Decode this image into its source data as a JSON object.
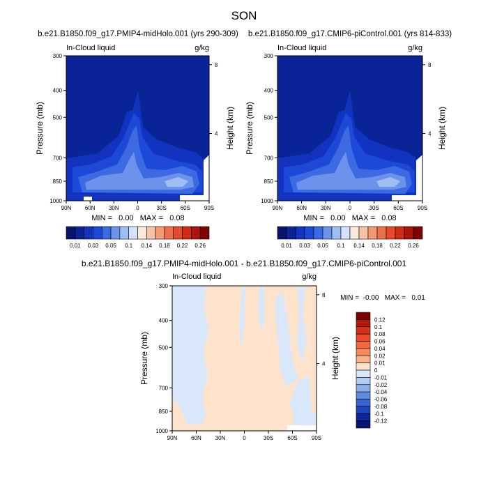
{
  "figure_title": "SON",
  "colors": {
    "panel_bg": "#ffffff",
    "axis": "#000000",
    "missing": "#ffffff"
  },
  "chart_data": [
    {
      "type": "heatmap",
      "id": "top_left",
      "title": "b.e21.B1850.f09_g17.PMIP4-midHolo.001 (yrs 290-309)",
      "left_label": "In-Cloud liquid",
      "right_label": "g/kg",
      "ylabel": "Pressure (mb)",
      "y2label": "Height (km)",
      "xlim": [
        90,
        -90
      ],
      "x_ticks": [
        90,
        60,
        30,
        0,
        -30,
        -60,
        -90
      ],
      "x_tick_labels": [
        "90N",
        "60N",
        "30N",
        "0",
        "30S",
        "60S",
        "90S"
      ],
      "y_ticks": [
        300,
        400,
        500,
        700,
        850,
        1000
      ],
      "y_tick_labels": [
        "300",
        "400",
        "500",
        "700",
        "850",
        "1000"
      ],
      "y2_ticks": [
        8,
        4
      ],
      "y2_tick_labels": [
        "8",
        "4"
      ],
      "minmax_text": "MIN =   0.00   MAX =   0.08",
      "colorbar_levels": [
        "0.01",
        "0.03",
        "0.05",
        "0.1",
        "0.14",
        "0.18",
        "0.22",
        "0.26"
      ],
      "colorbar_colors": [
        "#08146b",
        "#0a2396",
        "#1232c0",
        "#1d48d8",
        "#3b6ae2",
        "#6c92ec",
        "#9fbef3",
        "#d2e4fb",
        "#fbe8d9",
        "#f7c3a4",
        "#f29a74",
        "#ec6e4c",
        "#e44a2a",
        "#d02b14",
        "#ab150b",
        "#7e0303"
      ]
    },
    {
      "type": "heatmap",
      "id": "top_right",
      "title": "b.e21.B1850.f09_g17.CMIP6-piControl.001 (yrs 814-833)",
      "left_label": "In-Cloud liquid",
      "right_label": "g/kg",
      "ylabel": "Pressure (mb)",
      "y2label": "Height (km)",
      "xlim": [
        90,
        -90
      ],
      "x_ticks": [
        90,
        60,
        30,
        0,
        -30,
        -60,
        -90
      ],
      "x_tick_labels": [
        "90N",
        "60N",
        "30N",
        "0",
        "30S",
        "60S",
        "90S"
      ],
      "y_ticks": [
        300,
        400,
        500,
        700,
        850,
        1000
      ],
      "y_tick_labels": [
        "300",
        "400",
        "500",
        "700",
        "850",
        "1000"
      ],
      "y2_ticks": [
        8,
        4
      ],
      "y2_tick_labels": [
        "8",
        "4"
      ],
      "minmax_text": "MIN =   0.00   MAX =   0.08",
      "colorbar_levels": [
        "0.01",
        "0.03",
        "0.05",
        "0.1",
        "0.14",
        "0.18",
        "0.22",
        "0.26"
      ],
      "colorbar_colors": [
        "#08146b",
        "#0a2396",
        "#1232c0",
        "#1d48d8",
        "#3b6ae2",
        "#6c92ec",
        "#9fbef3",
        "#d2e4fb",
        "#fbe8d9",
        "#f7c3a4",
        "#f29a74",
        "#ec6e4c",
        "#e44a2a",
        "#d02b14",
        "#ab150b",
        "#7e0303"
      ]
    },
    {
      "type": "heatmap",
      "id": "difference",
      "title": "b.e21.B1850.f09_g17.PMIP4-midHolo.001 - b.e21.B1850.f09_g17.CMIP6-piControl.001",
      "left_label": "In-Cloud liquid",
      "right_label": "g/kg",
      "ylabel": "Pressure (mb)",
      "y2label": "Height (km)",
      "xlim": [
        90,
        -90
      ],
      "x_ticks": [
        90,
        60,
        30,
        0,
        -30,
        -60,
        -90
      ],
      "x_tick_labels": [
        "90N",
        "60N",
        "30N",
        "0",
        "30S",
        "60S",
        "90S"
      ],
      "y_ticks": [
        300,
        400,
        500,
        700,
        850,
        1000
      ],
      "y_tick_labels": [
        "300",
        "400",
        "500",
        "700",
        "850",
        "1000"
      ],
      "y2_ticks": [
        8,
        4
      ],
      "y2_tick_labels": [
        "8",
        "4"
      ],
      "minmax_text": "MIN =  -0.00   MAX =   0.01",
      "colorbar_levels": [
        "0.12",
        "0.1",
        "0.08",
        "0.06",
        "0.04",
        "0.02",
        "0.01",
        "0",
        "-0.01",
        "-0.02",
        "-0.04",
        "-0.06",
        "-0.08",
        "-0.1",
        "-0.12"
      ],
      "colorbar_colors": [
        "#7f0000",
        "#b21a0b",
        "#d8301a",
        "#ec4a28",
        "#f3683e",
        "#f68b5e",
        "#f9b08b",
        "#fde3cc",
        "#d9e7fb",
        "#b4cdf3",
        "#8ab0ea",
        "#5e8de0",
        "#3566d3",
        "#1c44bd",
        "#0a269a",
        "#061470"
      ]
    }
  ]
}
